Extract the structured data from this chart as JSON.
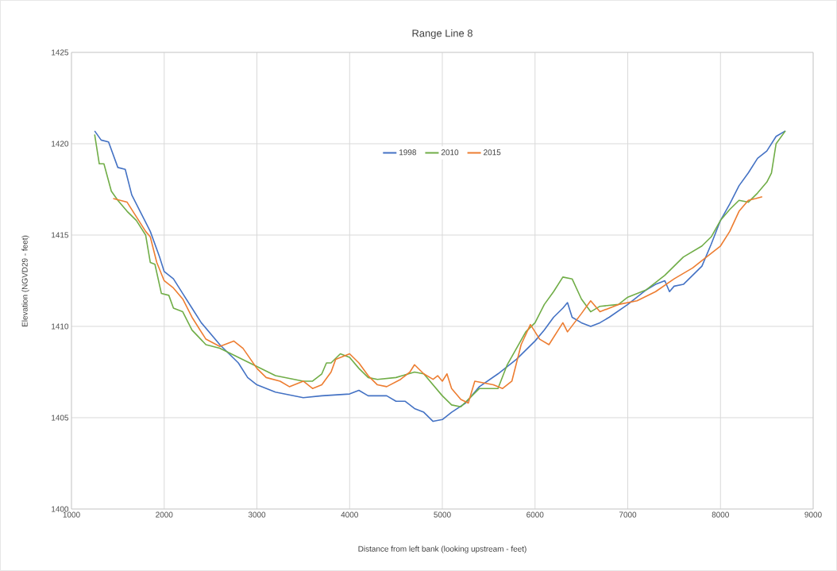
{
  "chart_data": {
    "type": "line",
    "title": "Range Line 8",
    "xlabel": "Distance from left bank (looking upstream - feet)",
    "ylabel": "Elevation (NGVD29 - feet)",
    "xlim": [
      1000,
      9000
    ],
    "xticks": [
      1000,
      2000,
      3000,
      4000,
      5000,
      6000,
      7000,
      8000,
      9000
    ],
    "ylim": [
      1400,
      1425
    ],
    "yticks": [
      1400,
      1405,
      1410,
      1415,
      1420,
      1425
    ],
    "grid": true,
    "legend": "top",
    "marker": "none",
    "line_style": "solid",
    "series": [
      {
        "name": "1998",
        "color": "#4472c4",
        "x": [
          1250,
          1320,
          1400,
          1500,
          1580,
          1650,
          1750,
          1850,
          1950,
          2000,
          2100,
          2200,
          2300,
          2400,
          2600,
          2800,
          2900,
          3000,
          3200,
          3500,
          3700,
          4000,
          4100,
          4200,
          4400,
          4500,
          4600,
          4700,
          4800,
          4900,
          5000,
          5100,
          5250,
          5400,
          5600,
          5800,
          6000,
          6100,
          6200,
          6300,
          6350,
          6400,
          6500,
          6600,
          6700,
          6800,
          7000,
          7200,
          7300,
          7400,
          7450,
          7500,
          7600,
          7800,
          7900,
          8000,
          8100,
          8200,
          8300,
          8400,
          8500,
          8600,
          8700
        ],
        "values": [
          1420.7,
          1420.2,
          1420.1,
          1418.7,
          1418.6,
          1417.2,
          1416.2,
          1415.2,
          1413.8,
          1413.0,
          1412.6,
          1411.8,
          1411.0,
          1410.2,
          1409.0,
          1408.0,
          1407.2,
          1406.8,
          1406.4,
          1406.1,
          1406.2,
          1406.3,
          1406.5,
          1406.2,
          1406.2,
          1405.9,
          1405.9,
          1405.5,
          1405.3,
          1404.8,
          1404.9,
          1405.3,
          1405.8,
          1406.7,
          1407.4,
          1408.2,
          1409.2,
          1409.8,
          1410.5,
          1411.0,
          1411.3,
          1410.5,
          1410.2,
          1410.0,
          1410.2,
          1410.5,
          1411.2,
          1412.0,
          1412.3,
          1412.5,
          1411.9,
          1412.2,
          1412.3,
          1413.3,
          1414.5,
          1415.8,
          1416.7,
          1417.7,
          1418.4,
          1419.2,
          1419.6,
          1420.4,
          1420.7
        ]
      },
      {
        "name": "2010",
        "color": "#70ad47",
        "x": [
          1250,
          1300,
          1350,
          1430,
          1500,
          1600,
          1700,
          1800,
          1850,
          1900,
          1970,
          2050,
          2100,
          2200,
          2300,
          2450,
          2600,
          2800,
          3000,
          3200,
          3500,
          3600,
          3700,
          3750,
          3800,
          3900,
          4000,
          4100,
          4200,
          4300,
          4500,
          4700,
          4800,
          5000,
          5100,
          5200,
          5400,
          5600,
          5700,
          5800,
          5900,
          6000,
          6100,
          6200,
          6300,
          6400,
          6500,
          6600,
          6700,
          6900,
          7000,
          7200,
          7400,
          7600,
          7800,
          7900,
          8000,
          8100,
          8200,
          8300,
          8400,
          8500,
          8550,
          8600,
          8700
        ],
        "values": [
          1420.5,
          1418.9,
          1418.9,
          1417.4,
          1416.9,
          1416.3,
          1415.8,
          1415.0,
          1413.5,
          1413.4,
          1411.8,
          1411.7,
          1411.0,
          1410.8,
          1409.8,
          1409.0,
          1408.8,
          1408.3,
          1407.8,
          1407.3,
          1407.0,
          1407.0,
          1407.4,
          1408.0,
          1408.0,
          1408.5,
          1408.3,
          1407.7,
          1407.2,
          1407.1,
          1407.2,
          1407.5,
          1407.4,
          1406.2,
          1405.7,
          1405.6,
          1406.6,
          1406.6,
          1407.9,
          1408.8,
          1409.7,
          1410.2,
          1411.2,
          1411.9,
          1412.7,
          1412.6,
          1411.5,
          1410.8,
          1411.1,
          1411.2,
          1411.6,
          1412.0,
          1412.8,
          1413.8,
          1414.4,
          1414.9,
          1415.8,
          1416.4,
          1416.9,
          1416.8,
          1417.3,
          1417.9,
          1418.4,
          1420.0,
          1420.7
        ]
      },
      {
        "name": "2015",
        "color": "#ed7d31",
        "x": [
          1450,
          1600,
          1700,
          1800,
          1850,
          1920,
          2000,
          2100,
          2200,
          2300,
          2450,
          2600,
          2750,
          2850,
          3000,
          3100,
          3250,
          3350,
          3500,
          3600,
          3700,
          3800,
          3850,
          4000,
          4100,
          4200,
          4300,
          4400,
          4550,
          4650,
          4700,
          4800,
          4900,
          4950,
          5000,
          5050,
          5100,
          5200,
          5280,
          5350,
          5450,
          5550,
          5650,
          5750,
          5850,
          5950,
          6050,
          6150,
          6300,
          6350,
          6500,
          6600,
          6700,
          6900,
          7100,
          7300,
          7500,
          7700,
          7800,
          8000,
          8100,
          8200,
          8300,
          8380,
          8450
        ],
        "values": [
          1417.0,
          1416.8,
          1416.0,
          1415.2,
          1414.9,
          1413.5,
          1412.5,
          1412.1,
          1411.5,
          1410.5,
          1409.3,
          1408.9,
          1409.2,
          1408.8,
          1407.7,
          1407.2,
          1407.0,
          1406.7,
          1407.0,
          1406.6,
          1406.8,
          1407.5,
          1408.2,
          1408.5,
          1408.0,
          1407.3,
          1406.8,
          1406.7,
          1407.1,
          1407.5,
          1407.9,
          1407.4,
          1407.1,
          1407.3,
          1407.0,
          1407.4,
          1406.6,
          1406.0,
          1405.8,
          1407.0,
          1406.9,
          1406.8,
          1406.6,
          1407.0,
          1409.0,
          1410.1,
          1409.3,
          1409.0,
          1410.2,
          1409.7,
          1410.7,
          1411.4,
          1410.8,
          1411.2,
          1411.4,
          1411.9,
          1412.6,
          1413.2,
          1413.6,
          1414.4,
          1415.2,
          1416.3,
          1416.9,
          1417.0,
          1417.1
        ]
      }
    ]
  }
}
